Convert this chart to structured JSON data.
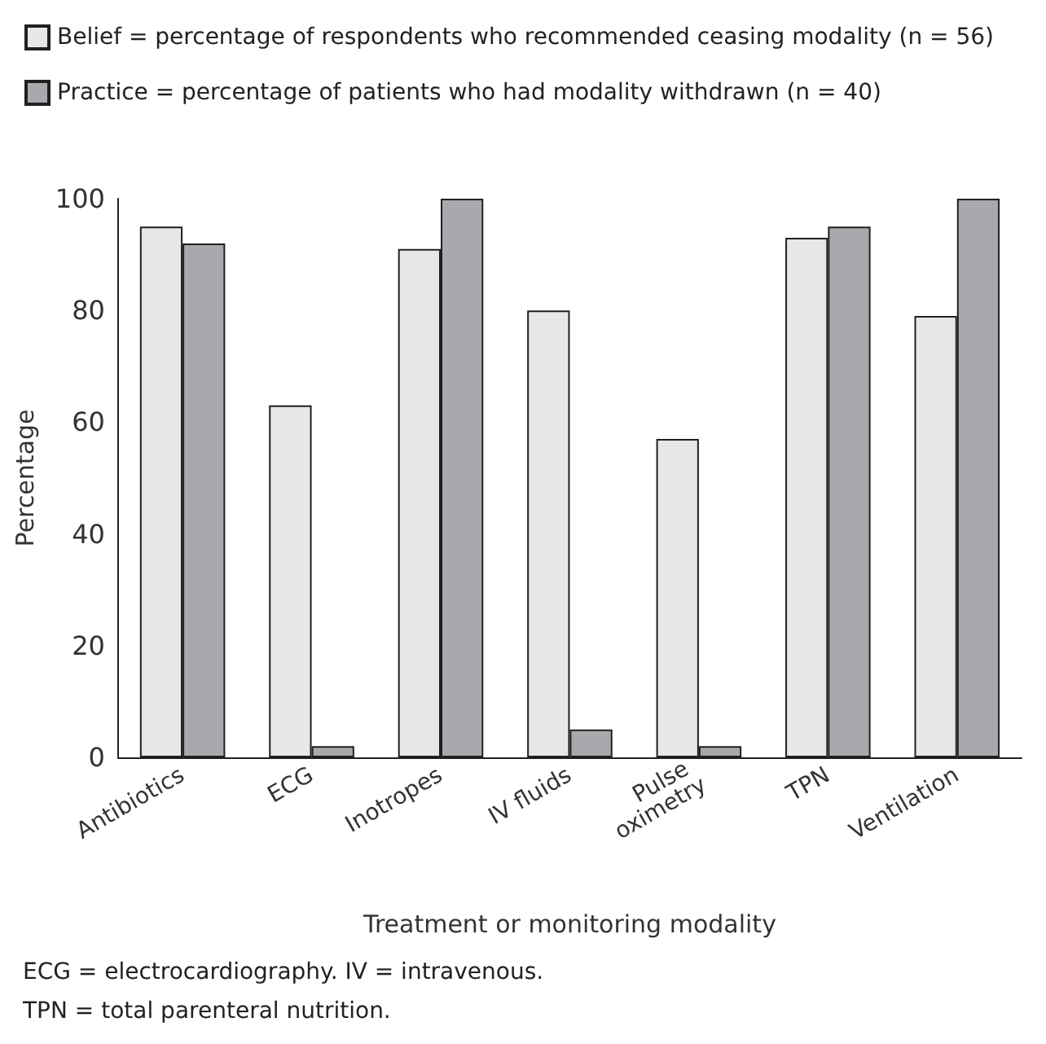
{
  "chart_data": {
    "type": "bar",
    "categories": [
      "Antibiotics",
      "ECG",
      "Inotropes",
      "IV fluids",
      "Pulse oximetry",
      "TPN",
      "Ventilation"
    ],
    "series": [
      {
        "name": "Belief = percentage of respondents who recommended ceasing modality (n = 56)",
        "color": "#e6e7e8",
        "values": [
          95,
          63,
          91,
          80,
          57,
          93,
          79
        ]
      },
      {
        "name": "Practice = percentage of patients who had modality withdrawn (n = 40)",
        "color": "#a7a9ac",
        "values": [
          92,
          2,
          100,
          5,
          2,
          95,
          100
        ]
      }
    ],
    "xlabel": "Treatment or monitoring modality",
    "ylabel": "Percentage",
    "ylim": [
      0,
      100
    ],
    "yticks": [
      0,
      20,
      40,
      60,
      80,
      100
    ],
    "grid": false,
    "legend": "top left",
    "annotations": [
      "ECG = electrocardiography. IV = intravenous.",
      "TPN = total parenteral nutrition."
    ]
  }
}
